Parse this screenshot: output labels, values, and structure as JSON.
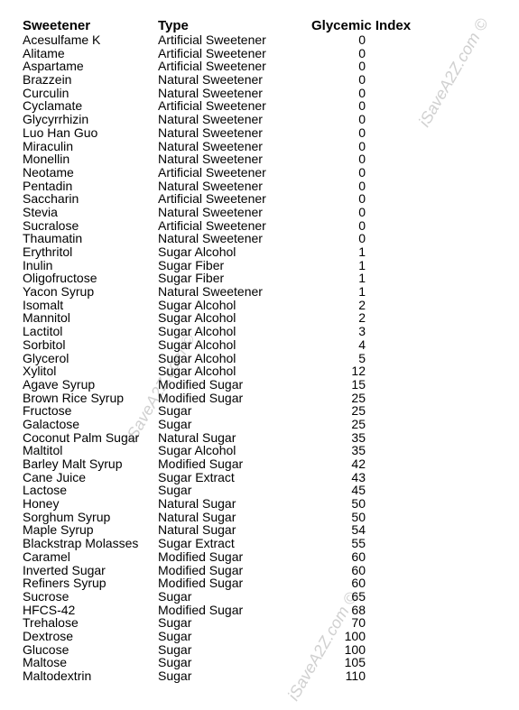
{
  "watermark": "iSaveA2Z.com ©",
  "table": {
    "headers": {
      "sweetener": "Sweetener",
      "type": "Type",
      "gi": "Glycemic Index"
    },
    "rows": [
      {
        "sweetener": "Acesulfame K",
        "type": "Artificial Sweetener",
        "gi": "0"
      },
      {
        "sweetener": "Alitame",
        "type": "Artificial Sweetener",
        "gi": "0"
      },
      {
        "sweetener": "Aspartame",
        "type": "Artificial Sweetener",
        "gi": "0"
      },
      {
        "sweetener": "Brazzein",
        "type": "Natural Sweetener",
        "gi": "0"
      },
      {
        "sweetener": "Curculin",
        "type": "Natural Sweetener",
        "gi": "0"
      },
      {
        "sweetener": "Cyclamate",
        "type": "Artificial Sweetener",
        "gi": "0"
      },
      {
        "sweetener": "Glycyrrhizin",
        "type": "Natural Sweetener",
        "gi": "0"
      },
      {
        "sweetener": "Luo Han Guo",
        "type": "Natural Sweetener",
        "gi": "0"
      },
      {
        "sweetener": "Miraculin",
        "type": "Natural Sweetener",
        "gi": "0"
      },
      {
        "sweetener": "Monellin",
        "type": "Natural Sweetener",
        "gi": "0"
      },
      {
        "sweetener": "Neotame",
        "type": "Artificial Sweetener",
        "gi": "0"
      },
      {
        "sweetener": "Pentadin",
        "type": "Natural Sweetener",
        "gi": "0"
      },
      {
        "sweetener": "Saccharin",
        "type": "Artificial Sweetener",
        "gi": "0"
      },
      {
        "sweetener": "Stevia",
        "type": "Natural Sweetener",
        "gi": "0"
      },
      {
        "sweetener": "Sucralose",
        "type": "Artificial Sweetener",
        "gi": "0"
      },
      {
        "sweetener": "Thaumatin",
        "type": "Natural Sweetener",
        "gi": "0"
      },
      {
        "sweetener": "Erythritol",
        "type": "Sugar Alcohol",
        "gi": "1"
      },
      {
        "sweetener": "Inulin",
        "type": "Sugar Fiber",
        "gi": "1"
      },
      {
        "sweetener": "Oligofructose",
        "type": "Sugar Fiber",
        "gi": "1"
      },
      {
        "sweetener": "Yacon Syrup",
        "type": "Natural Sweetener",
        "gi": "1"
      },
      {
        "sweetener": "Isomalt",
        "type": "Sugar Alcohol",
        "gi": "2"
      },
      {
        "sweetener": "Mannitol",
        "type": "Sugar Alcohol",
        "gi": "2"
      },
      {
        "sweetener": "Lactitol",
        "type": "Sugar Alcohol",
        "gi": "3"
      },
      {
        "sweetener": "Sorbitol",
        "type": "Sugar Alcohol",
        "gi": "4"
      },
      {
        "sweetener": "Glycerol",
        "type": "Sugar Alcohol",
        "gi": "5"
      },
      {
        "sweetener": "Xylitol",
        "type": "Sugar Alcohol",
        "gi": "12"
      },
      {
        "sweetener": "Agave Syrup",
        "type": "Modified Sugar",
        "gi": "15"
      },
      {
        "sweetener": "Brown Rice Syrup",
        "type": "Modified Sugar",
        "gi": "25"
      },
      {
        "sweetener": "Fructose",
        "type": "Sugar",
        "gi": "25"
      },
      {
        "sweetener": "Galactose",
        "type": "Sugar",
        "gi": "25"
      },
      {
        "sweetener": "Coconut Palm Sugar",
        "type": "Natural Sugar",
        "gi": "35"
      },
      {
        "sweetener": "Maltitol",
        "type": "Sugar Alcohol",
        "gi": "35"
      },
      {
        "sweetener": "Barley Malt Syrup",
        "type": "Modified Sugar",
        "gi": "42"
      },
      {
        "sweetener": "Cane Juice",
        "type": "Sugar Extract",
        "gi": "43"
      },
      {
        "sweetener": "Lactose",
        "type": "Sugar",
        "gi": "45"
      },
      {
        "sweetener": "Honey",
        "type": "Natural Sugar",
        "gi": "50"
      },
      {
        "sweetener": "Sorghum Syrup",
        "type": "Natural Sugar",
        "gi": "50"
      },
      {
        "sweetener": "Maple Syrup",
        "type": "Natural Sugar",
        "gi": "54"
      },
      {
        "sweetener": "Blackstrap Molasses",
        "type": "Sugar Extract",
        "gi": "55"
      },
      {
        "sweetener": "Caramel",
        "type": "Modified Sugar",
        "gi": "60"
      },
      {
        "sweetener": "Inverted Sugar",
        "type": "Modified Sugar",
        "gi": "60"
      },
      {
        "sweetener": "Refiners Syrup",
        "type": "Modified Sugar",
        "gi": "60"
      },
      {
        "sweetener": "Sucrose",
        "type": "Sugar",
        "gi": "65"
      },
      {
        "sweetener": "HFCS-42",
        "type": "Modified Sugar",
        "gi": "68"
      },
      {
        "sweetener": "Trehalose",
        "type": "Sugar",
        "gi": "70"
      },
      {
        "sweetener": "Dextrose",
        "type": "Sugar",
        "gi": "100"
      },
      {
        "sweetener": "Glucose",
        "type": "Sugar",
        "gi": "100"
      },
      {
        "sweetener": "Maltose",
        "type": "Sugar",
        "gi": "105"
      },
      {
        "sweetener": "Maltodextrin",
        "type": "Sugar",
        "gi": "110"
      }
    ]
  }
}
